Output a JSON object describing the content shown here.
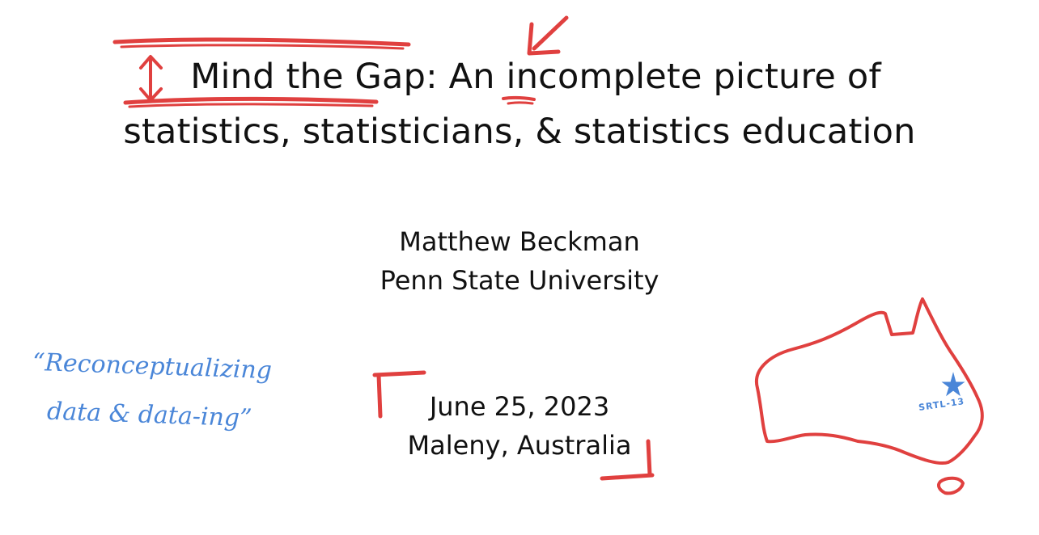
{
  "slide": {
    "title_line1": "Mind the Gap: An incomplete picture of",
    "title_line2": "statistics, statisticians, & statistics education",
    "author": "Matthew Beckman",
    "affiliation": "Penn State University",
    "date": "June 25, 2023",
    "location": "Maleny, Australia"
  },
  "annotations": {
    "handwritten_line1": "“Reconceptualizing",
    "handwritten_line2": "data & data-ing”",
    "map_label": "SRTL-13",
    "ink_red": "#e0403f",
    "ink_blue": "#4a86d8"
  }
}
